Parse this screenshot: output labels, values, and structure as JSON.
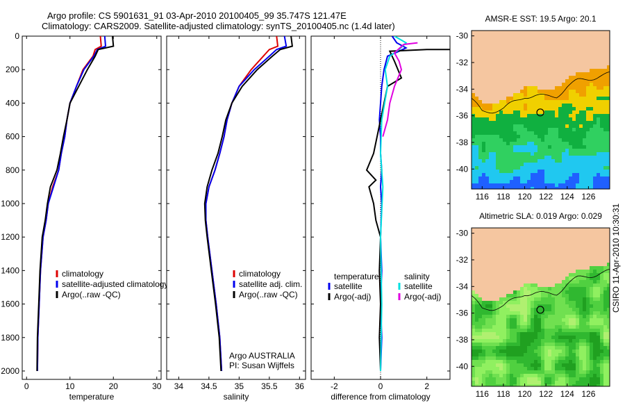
{
  "header": {
    "line1": "Argo profile: CS 5901631_91 03-Apr-2010 20100405_99 35.747S 121.47E",
    "line2": "Climatology: CARS2009. Satellite-adjusted climatology: synTS_20100405.nc (1.4d later)"
  },
  "side_label": "CSIRO 11-Apr-2010 10:30:31",
  "colors": {
    "climatology": "#dd0000",
    "satellite": "#0000ee",
    "argo": "#000000",
    "sat_diff_sal": "#00e0e0",
    "argo_diff_sal": "#e000e0",
    "land": "#f5c6a0"
  },
  "chart_data": [
    {
      "type": "line",
      "xlabel": "temperature",
      "ylabel": "",
      "xlim": [
        -1,
        31
      ],
      "ylim": [
        2050,
        0
      ],
      "y_reversed": true,
      "xticks": [
        0,
        10,
        20,
        30
      ],
      "yticks": [
        0,
        200,
        400,
        600,
        800,
        1000,
        1200,
        1400,
        1600,
        1800,
        2000
      ],
      "legend": {
        "position": "lower-right",
        "entries": [
          "climatology",
          "satellite-adjusted climatology",
          "Argo(..raw -QC)"
        ]
      },
      "series": [
        {
          "name": "climatology",
          "color": "#dd0000",
          "x": [
            17.0,
            17.2,
            15.8,
            15.3,
            13.0,
            11.5,
            10.0,
            9.3,
            8.8,
            8.0,
            7.4,
            6.0,
            5.0,
            4.5,
            3.8,
            3.2,
            2.9,
            2.6,
            2.5
          ],
          "y": [
            0,
            60,
            80,
            120,
            200,
            300,
            400,
            500,
            600,
            700,
            800,
            900,
            1000,
            1100,
            1200,
            1400,
            1600,
            1800,
            2000
          ]
        },
        {
          "name": "satellite-adjusted climatology",
          "color": "#0000ee",
          "x": [
            18.0,
            18.2,
            16.3,
            15.5,
            13.2,
            11.5,
            10.0,
            9.3,
            8.8,
            8.0,
            7.4,
            6.2,
            5.0,
            4.5,
            3.8,
            3.2,
            2.9,
            2.6,
            2.5
          ],
          "y": [
            0,
            60,
            80,
            120,
            200,
            300,
            400,
            500,
            600,
            700,
            800,
            900,
            1000,
            1100,
            1200,
            1400,
            1600,
            1800,
            2000
          ]
        },
        {
          "name": "Argo(..raw -QC)",
          "color": "#000000",
          "x": [
            19.8,
            20.0,
            16.5,
            15.8,
            14.0,
            12.0,
            10.0,
            9.3,
            8.5,
            7.8,
            7.0,
            5.5,
            4.8,
            4.3,
            3.6,
            3.1,
            2.8,
            2.5,
            2.4
          ],
          "y": [
            0,
            60,
            80,
            120,
            200,
            300,
            400,
            500,
            600,
            700,
            800,
            900,
            1000,
            1100,
            1200,
            1400,
            1600,
            1800,
            2000
          ]
        }
      ]
    },
    {
      "type": "line",
      "xlabel": "salinity",
      "ylabel": "",
      "xlim": [
        33.8,
        36.1
      ],
      "ylim": [
        2050,
        0
      ],
      "y_reversed": true,
      "xticks": [
        34,
        34.5,
        35,
        35.5,
        36
      ],
      "legend": {
        "position": "lower-right",
        "entries": [
          "climatology",
          "satellite adj. clim.",
          "Argo(..raw -QC)"
        ]
      },
      "annotation": [
        "Argo AUSTRALIA",
        "PI: Susan Wijffels"
      ],
      "series": [
        {
          "name": "climatology",
          "color": "#dd0000",
          "x": [
            35.62,
            35.64,
            35.5,
            35.4,
            35.2,
            35.0,
            34.88,
            34.8,
            34.75,
            34.68,
            34.6,
            34.5,
            34.45,
            34.45,
            34.48,
            34.55,
            34.62,
            34.68,
            34.71
          ],
          "y": [
            0,
            60,
            80,
            120,
            200,
            300,
            400,
            500,
            600,
            700,
            800,
            900,
            1000,
            1100,
            1200,
            1400,
            1600,
            1800,
            2000
          ]
        },
        {
          "name": "satellite adj. clim.",
          "color": "#0000ee",
          "x": [
            35.75,
            35.78,
            35.62,
            35.5,
            35.25,
            35.0,
            34.88,
            34.8,
            34.75,
            34.68,
            34.6,
            34.5,
            34.45,
            34.45,
            34.48,
            34.55,
            34.62,
            34.68,
            34.71
          ],
          "y": [
            0,
            60,
            80,
            120,
            200,
            300,
            400,
            500,
            600,
            700,
            800,
            900,
            1000,
            1100,
            1200,
            1400,
            1600,
            1800,
            2000
          ]
        },
        {
          "name": "Argo(..raw -QC)",
          "color": "#000000",
          "x": [
            35.86,
            35.88,
            35.68,
            35.55,
            35.3,
            35.05,
            34.88,
            34.78,
            34.72,
            34.65,
            34.55,
            34.47,
            34.43,
            34.44,
            34.47,
            34.54,
            34.61,
            34.67,
            34.7
          ],
          "y": [
            0,
            60,
            80,
            120,
            200,
            300,
            400,
            500,
            600,
            700,
            800,
            900,
            1000,
            1100,
            1200,
            1400,
            1600,
            1800,
            2000
          ]
        }
      ]
    },
    {
      "type": "line",
      "xlabel": "difference from climatology",
      "ylabel": "",
      "xlim": [
        -3,
        3
      ],
      "ylim": [
        2050,
        0
      ],
      "y_reversed": true,
      "xticks": [
        -2,
        0,
        2
      ],
      "legend": {
        "position": "lower-left",
        "entries": [
          "temperature",
          "satellite",
          "Argo(-adj)",
          "salinity",
          "satellite",
          "Argo(-adj)"
        ]
      },
      "series": [
        {
          "name": "temperature satellite",
          "color": "#0000ee",
          "x": [
            0.5,
            0.7,
            1.1,
            0.8,
            0.3,
            0.15,
            0.05,
            0.0,
            -0.05,
            0.0,
            0.0,
            0.05,
            0.0,
            0.05,
            0.0,
            0.05,
            0.0,
            0.05,
            0.0
          ],
          "y": [
            0,
            40,
            70,
            90,
            120,
            200,
            300,
            400,
            500,
            600,
            700,
            800,
            900,
            1000,
            1200,
            1400,
            1600,
            1800,
            2000
          ]
        },
        {
          "name": "temperature Argo(-adj)",
          "color": "#000000",
          "x": [
            3.0,
            2.0,
            0.4,
            0.6,
            0.9,
            0.3,
            0.15,
            0.0,
            -0.3,
            -0.6,
            -0.2,
            -0.5,
            -0.3,
            -0.2,
            0.0,
            -0.05,
            0.0,
            -0.05,
            0.0
          ],
          "y": [
            80,
            80,
            90,
            150,
            250,
            300,
            400,
            500,
            700,
            800,
            860,
            900,
            1000,
            1100,
            1200,
            1400,
            1600,
            1800,
            2000
          ]
        },
        {
          "name": "salinity satellite",
          "color": "#00e0e0",
          "x": [
            0.6,
            1.1,
            0.8,
            0.4,
            0.2,
            0.3,
            0.05,
            0.0,
            0.1,
            0.0,
            0.05,
            0.0
          ],
          "y": [
            0,
            40,
            80,
            120,
            200,
            300,
            500,
            700,
            900,
            1200,
            1600,
            2000
          ]
        },
        {
          "name": "salinity Argo(-adj)",
          "color": "#e000e0",
          "x": [
            1.6,
            1.0,
            0.6,
            0.8,
            0.9,
            0.6,
            0.4,
            0.3,
            0.1
          ],
          "y": [
            40,
            50,
            100,
            150,
            200,
            300,
            400,
            500,
            600
          ]
        }
      ]
    },
    {
      "type": "heatmap",
      "title": "AMSR-E SST: 19.5 Argo: 20.1",
      "xlim": [
        115,
        128
      ],
      "ylim": [
        -41.5,
        -29.6
      ],
      "xticks": [
        116,
        118,
        120,
        122,
        124,
        126
      ],
      "yticks": [
        -30,
        -32,
        -34,
        -36,
        -38,
        -40
      ],
      "marker": {
        "x": 121.47,
        "y": -35.75
      }
    },
    {
      "type": "heatmap",
      "title": "Altimetric SLA: 0.019 Argo: 0.029",
      "xlim": [
        115,
        128
      ],
      "ylim": [
        -41.5,
        -29.6
      ],
      "xticks": [
        116,
        118,
        120,
        122,
        124,
        126
      ],
      "yticks": [
        -30,
        -32,
        -34,
        -36,
        -38,
        -40
      ],
      "marker": {
        "x": 121.47,
        "y": -35.75
      }
    }
  ]
}
